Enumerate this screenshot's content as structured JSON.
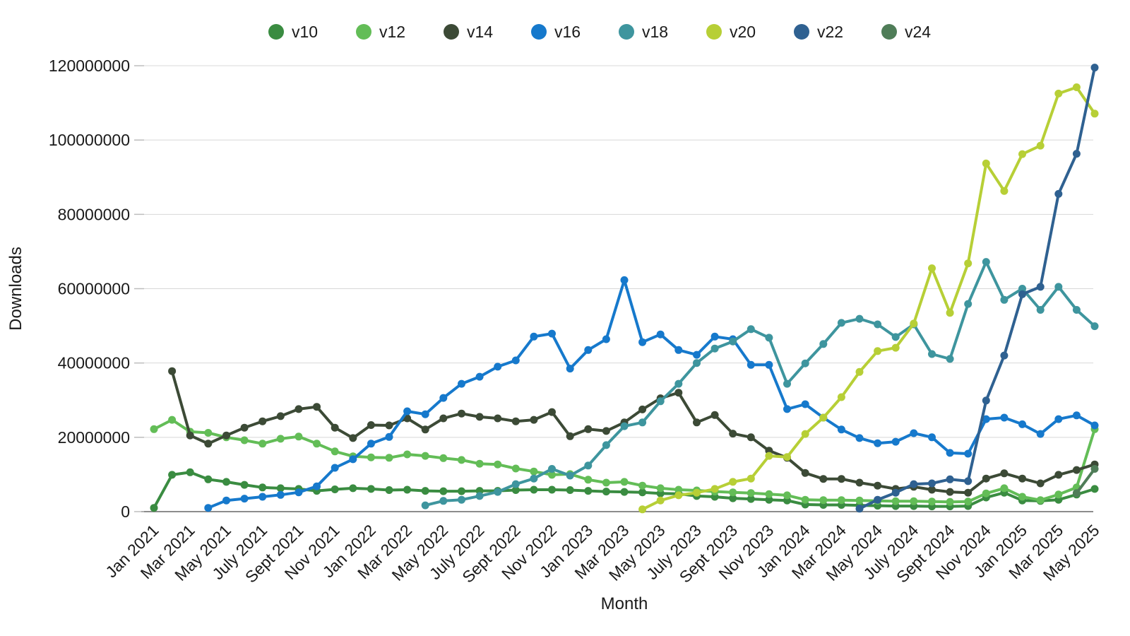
{
  "chart_data": {
    "type": "line",
    "title": "",
    "xlabel": "Month",
    "ylabel": "Downloads",
    "ylim": [
      0,
      120000000
    ],
    "y_ticks": [
      0,
      20000000,
      40000000,
      60000000,
      80000000,
      100000000,
      120000000
    ],
    "x_tick_labels": [
      "Jan 2021",
      "Mar 2021",
      "May 2021",
      "July 2021",
      "Sept 2021",
      "Nov 2021",
      "Jan 2022",
      "Mar 2022",
      "May 2022",
      "July 2022",
      "Sept 2022",
      "Nov 2022",
      "Jan 2023",
      "Mar 2023",
      "May 2023",
      "July 2023",
      "Sept 2023",
      "Nov 2023",
      "Jan 2024",
      "Mar 2024",
      "May 2024",
      "July 2024",
      "Sept 2024",
      "Nov 2024",
      "Jan 2025",
      "Mar 2025",
      "May 2025"
    ],
    "x_range_start": "Jan 2021",
    "x_range_end": "May 2025",
    "x_interval": "monthly",
    "n_points": 53,
    "values_unit": "millions_of_downloads",
    "grid": "horizontal",
    "legend_position": "top",
    "colors": {
      "background": "#ffffff",
      "gridline": "#d8d8d8",
      "axis_line": "#8c8c8c",
      "tick_mark": "#bdbdbd",
      "text": "#1a1a1a"
    },
    "series": [
      {
        "name": "v10",
        "color": "#3a8c41",
        "values": [
          1.0,
          9.9,
          10.6,
          8.7,
          8.0,
          7.2,
          6.5,
          6.3,
          6.1,
          5.6,
          6.0,
          6.3,
          6.1,
          5.8,
          5.9,
          5.6,
          5.5,
          5.5,
          5.6,
          5.6,
          5.8,
          5.9,
          5.9,
          5.8,
          5.6,
          5.4,
          5.3,
          5.2,
          4.9,
          4.8,
          4.2,
          4.0,
          3.6,
          3.4,
          3.2,
          3.0,
          1.9,
          1.8,
          1.8,
          1.7,
          1.6,
          1.5,
          1.5,
          1.4,
          1.4,
          1.5,
          3.8,
          5.1,
          3.0,
          2.9,
          3.2,
          4.6,
          6.1
        ]
      },
      {
        "name": "v12",
        "color": "#63bd57",
        "values": [
          22.2,
          24.7,
          21.5,
          21.2,
          20.0,
          19.2,
          18.3,
          19.6,
          20.2,
          18.3,
          16.2,
          14.9,
          14.6,
          14.5,
          15.4,
          15.0,
          14.4,
          13.9,
          12.9,
          12.7,
          11.6,
          10.8,
          9.9,
          10.1,
          8.6,
          7.8,
          8.0,
          7.0,
          6.3,
          5.9,
          5.7,
          5.4,
          5.2,
          5.0,
          4.7,
          4.4,
          3.2,
          3.1,
          3.1,
          3.0,
          2.9,
          2.8,
          2.8,
          2.7,
          2.6,
          2.7,
          4.9,
          6.3,
          4.0,
          3.1,
          4.6,
          6.5,
          22.2
        ]
      },
      {
        "name": "v14",
        "color": "#3c4a36",
        "values": [
          null,
          37.8,
          20.5,
          18.3,
          20.5,
          22.6,
          24.3,
          25.7,
          27.6,
          28.2,
          22.6,
          19.8,
          23.3,
          23.2,
          25.1,
          22.1,
          25.1,
          26.4,
          25.5,
          25.1,
          24.3,
          24.7,
          26.8,
          20.3,
          22.2,
          21.7,
          24.0,
          27.5,
          30.5,
          32.0,
          24.0,
          26.0,
          21.0,
          20.0,
          16.4,
          14.5,
          10.4,
          8.8,
          8.8,
          7.8,
          7.0,
          6.1,
          6.7,
          5.9,
          5.3,
          5.1,
          8.9,
          10.3,
          8.9,
          7.6,
          9.9,
          11.2,
          12.7
        ]
      },
      {
        "name": "v16",
        "color": "#1679cc",
        "values": [
          null,
          null,
          null,
          1.0,
          3.0,
          3.5,
          4.0,
          4.5,
          5.2,
          6.8,
          11.8,
          14.1,
          18.3,
          20.1,
          27.0,
          26.2,
          30.6,
          34.4,
          36.3,
          39.0,
          40.7,
          47.1,
          47.9,
          38.5,
          43.5,
          46.4,
          62.3,
          45.6,
          47.7,
          43.5,
          42.2,
          47.1,
          46.4,
          39.5,
          39.5,
          27.6,
          28.9,
          25.3,
          22.1,
          19.8,
          18.4,
          18.8,
          21.1,
          20.0,
          15.8,
          15.6,
          24.9,
          25.3,
          23.5,
          20.9,
          24.9,
          25.9,
          23.2
        ]
      },
      {
        "name": "v18",
        "color": "#3e959e",
        "values": [
          null,
          null,
          null,
          null,
          null,
          null,
          null,
          null,
          null,
          null,
          null,
          null,
          null,
          null,
          null,
          1.7,
          2.9,
          3.2,
          4.2,
          5.3,
          7.4,
          8.9,
          11.5,
          9.7,
          12.4,
          17.9,
          23.0,
          24.0,
          29.7,
          34.4,
          40.0,
          43.9,
          45.8,
          49.1,
          46.8,
          34.4,
          39.9,
          45.1,
          50.8,
          51.9,
          50.4,
          47.0,
          50.4,
          42.4,
          41.1,
          55.9,
          67.2,
          57.0,
          60.0,
          54.3,
          60.5,
          54.3,
          49.9
        ]
      },
      {
        "name": "v20",
        "color": "#b7cf36",
        "values": [
          null,
          null,
          null,
          null,
          null,
          null,
          null,
          null,
          null,
          null,
          null,
          null,
          null,
          null,
          null,
          null,
          null,
          null,
          null,
          null,
          null,
          null,
          null,
          null,
          null,
          null,
          null,
          0.6,
          3.0,
          4.4,
          5.1,
          6.1,
          8.0,
          8.9,
          15.0,
          14.7,
          20.9,
          25.3,
          30.8,
          37.6,
          43.2,
          44.1,
          50.6,
          65.5,
          53.5,
          66.8,
          93.7,
          86.3,
          96.2,
          98.5,
          112.5,
          114.2,
          107.1
        ]
      },
      {
        "name": "v22",
        "color": "#2f6191",
        "values": [
          null,
          null,
          null,
          null,
          null,
          null,
          null,
          null,
          null,
          null,
          null,
          null,
          null,
          null,
          null,
          null,
          null,
          null,
          null,
          null,
          null,
          null,
          null,
          null,
          null,
          null,
          null,
          null,
          null,
          null,
          null,
          null,
          null,
          null,
          null,
          null,
          null,
          null,
          null,
          0.8,
          3.2,
          5.1,
          7.4,
          7.6,
          8.7,
          8.2,
          29.9,
          42.0,
          58.5,
          60.5,
          85.5,
          96.3,
          119.5
        ]
      },
      {
        "name": "v24",
        "color": "#4f7d58",
        "values": [
          null,
          null,
          null,
          null,
          null,
          null,
          null,
          null,
          null,
          null,
          null,
          null,
          null,
          null,
          null,
          null,
          null,
          null,
          null,
          null,
          null,
          null,
          null,
          null,
          null,
          null,
          null,
          null,
          null,
          null,
          null,
          null,
          null,
          null,
          null,
          null,
          null,
          null,
          null,
          null,
          null,
          null,
          null,
          null,
          null,
          null,
          null,
          null,
          null,
          null,
          null,
          5.0,
          11.5
        ]
      }
    ]
  }
}
